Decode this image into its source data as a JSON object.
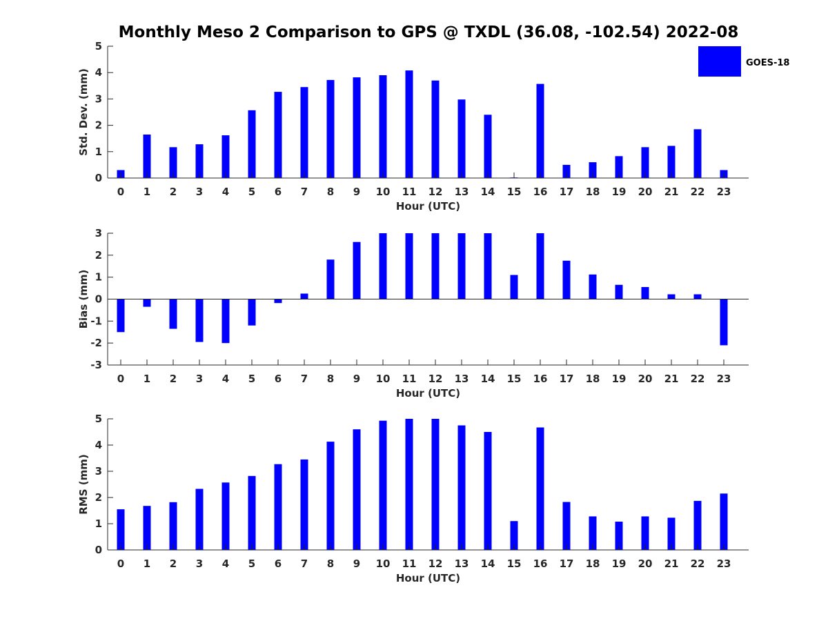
{
  "title": "Monthly Meso 2 Comparison to GPS @ TXDL (36.08, -102.54) 2022-08",
  "legend": {
    "series_name": "GOES-18",
    "placement": "top-right",
    "color": "#0000ff"
  },
  "chart_data": [
    {
      "type": "bar",
      "xlabel": "Hour (UTC)",
      "ylabel": "Std. Dev. (mm)",
      "ylim": [
        0,
        5
      ],
      "yticks": [
        "0",
        "1",
        "2",
        "3",
        "4",
        "5"
      ],
      "categories": [
        "0",
        "1",
        "2",
        "3",
        "4",
        "5",
        "6",
        "7",
        "8",
        "9",
        "10",
        "11",
        "12",
        "13",
        "14",
        "15",
        "16",
        "17",
        "18",
        "19",
        "20",
        "21",
        "22",
        "23"
      ],
      "series": [
        {
          "name": "GOES-18",
          "color": "#0000ff",
          "values": [
            0.3,
            1.65,
            1.17,
            1.28,
            1.62,
            2.57,
            3.27,
            3.45,
            3.72,
            3.82,
            3.9,
            4.08,
            3.7,
            2.98,
            2.4,
            0.02,
            3.57,
            0.5,
            0.6,
            0.83,
            1.17,
            1.22,
            1.85,
            0.3
          ]
        }
      ]
    },
    {
      "type": "bar",
      "xlabel": "Hour (UTC)",
      "ylabel": "Bias (mm)",
      "ylim": [
        -3,
        3
      ],
      "yticks": [
        "-3",
        "-2",
        "-1",
        "0",
        "1",
        "2",
        "3"
      ],
      "categories": [
        "0",
        "1",
        "2",
        "3",
        "4",
        "5",
        "6",
        "7",
        "8",
        "9",
        "10",
        "11",
        "12",
        "13",
        "14",
        "15",
        "16",
        "17",
        "18",
        "19",
        "20",
        "21",
        "22",
        "23"
      ],
      "series": [
        {
          "name": "GOES-18",
          "color": "#0000ff",
          "values": [
            -1.5,
            -0.35,
            -1.35,
            -1.95,
            -2.0,
            -1.2,
            -0.18,
            0.25,
            1.8,
            2.6,
            3.0,
            3.0,
            3.0,
            3.0,
            3.0,
            1.1,
            3.0,
            1.75,
            1.12,
            0.65,
            0.55,
            0.22,
            0.22,
            -2.1
          ]
        }
      ]
    },
    {
      "type": "bar",
      "xlabel": "Hour (UTC)",
      "ylabel": "RMS (mm)",
      "ylim": [
        0,
        5
      ],
      "yticks": [
        "0",
        "1",
        "2",
        "3",
        "4",
        "5"
      ],
      "categories": [
        "0",
        "1",
        "2",
        "3",
        "4",
        "5",
        "6",
        "7",
        "8",
        "9",
        "10",
        "11",
        "12",
        "13",
        "14",
        "15",
        "16",
        "17",
        "18",
        "19",
        "20",
        "21",
        "22",
        "23"
      ],
      "series": [
        {
          "name": "GOES-18",
          "color": "#0000ff",
          "values": [
            1.55,
            1.68,
            1.82,
            2.33,
            2.57,
            2.82,
            3.27,
            3.45,
            4.13,
            4.6,
            4.93,
            5.0,
            5.0,
            4.75,
            4.5,
            1.1,
            4.67,
            1.83,
            1.28,
            1.08,
            1.28,
            1.23,
            1.87,
            2.15
          ]
        }
      ]
    }
  ]
}
